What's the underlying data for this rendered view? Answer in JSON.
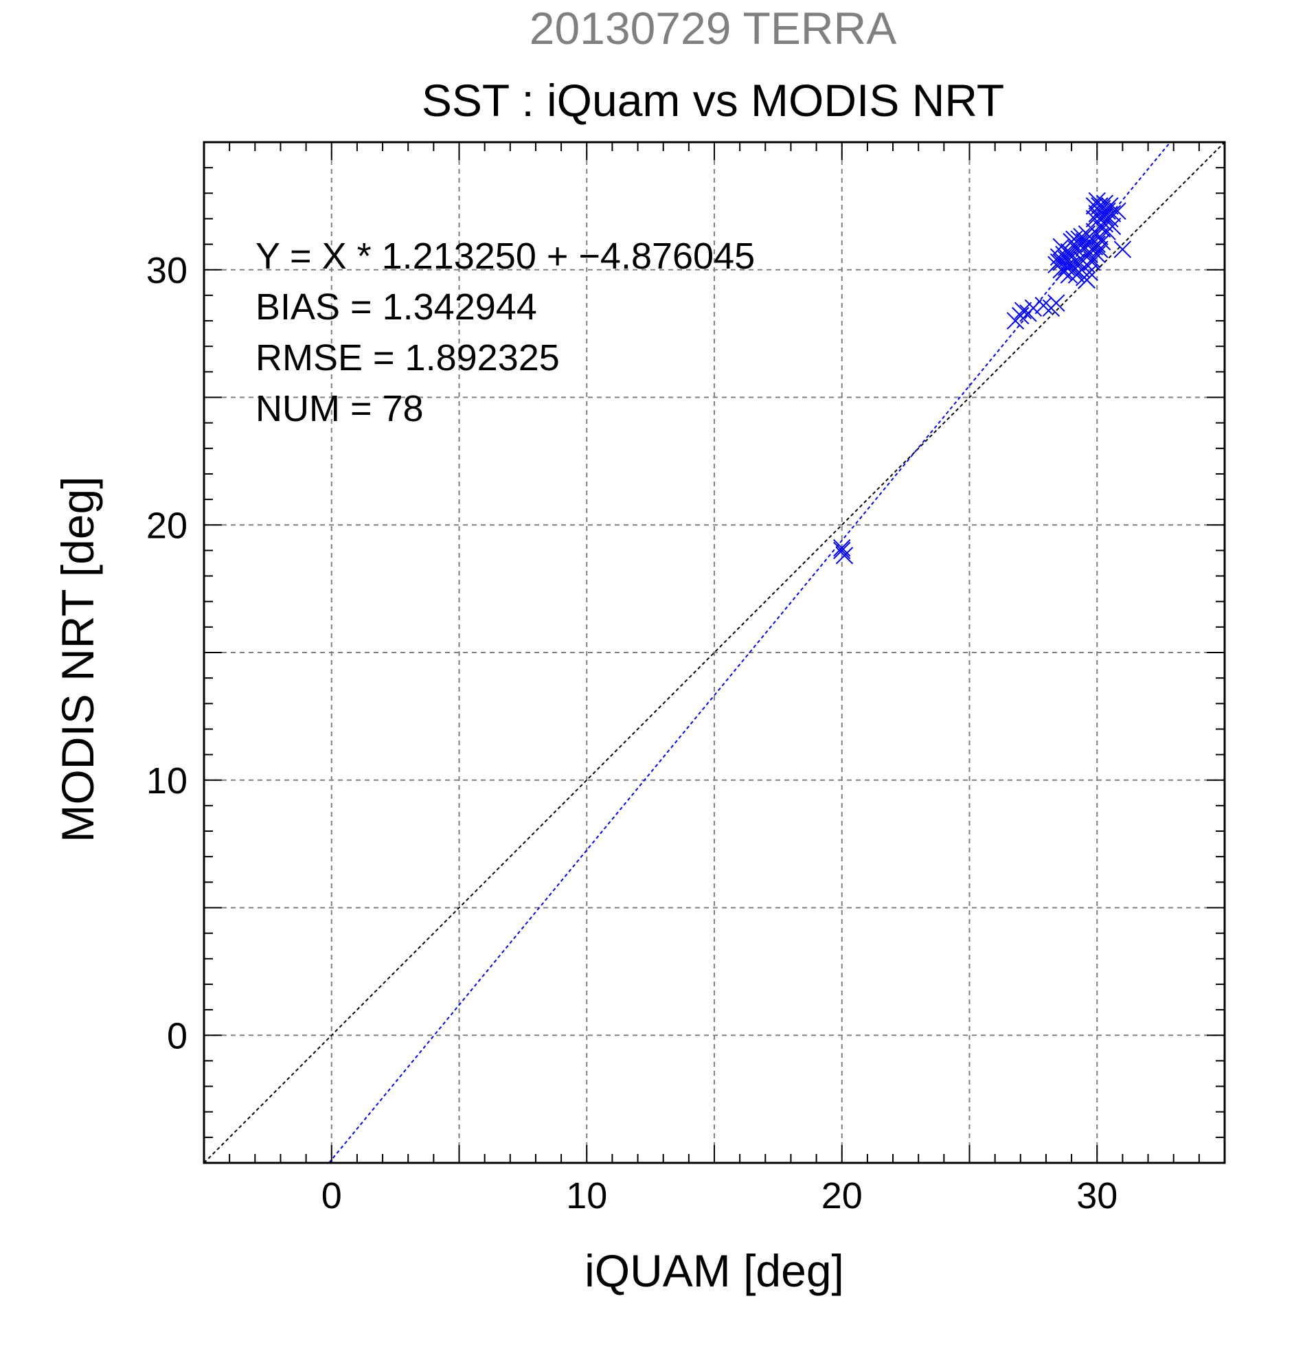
{
  "chart_data": {
    "type": "scatter",
    "supertitle": "20130729 TERRA",
    "title": "SST : iQuam vs MODIS NRT",
    "xlabel": "iQUAM [deg]",
    "ylabel": "MODIS NRT [deg]",
    "xlim": [
      -5,
      35
    ],
    "ylim": [
      -5,
      35
    ],
    "xticks": [
      0,
      10,
      20,
      30
    ],
    "yticks": [
      0,
      10,
      20,
      30
    ],
    "grid_step": 5,
    "minor_tick_step": 1,
    "grid": true,
    "annotations": [
      "Y = X * 1.213250 + −4.876045",
      "BIAS = 1.342944",
      "RMSE = 1.892325",
      "NUM = 78"
    ],
    "identity_line": {
      "slope": 1,
      "intercept": 0,
      "color": "#000000"
    },
    "fit_line": {
      "slope": 1.21325,
      "intercept": -4.876045,
      "color": "#0000ff"
    },
    "series": [
      {
        "marker": "x",
        "color": "#0000ff",
        "points": [
          [
            20.0,
            19.1
          ],
          [
            20.1,
            18.8
          ],
          [
            20.0,
            19.0
          ],
          [
            26.8,
            28.0
          ],
          [
            27.0,
            28.2
          ],
          [
            27.1,
            28.4
          ],
          [
            27.3,
            28.3
          ],
          [
            27.5,
            28.5
          ],
          [
            27.9,
            28.6
          ],
          [
            28.2,
            28.5
          ],
          [
            28.4,
            28.7
          ],
          [
            28.4,
            30.2
          ],
          [
            28.5,
            30.5
          ],
          [
            28.6,
            30.0
          ],
          [
            28.6,
            30.3
          ],
          [
            28.7,
            30.6
          ],
          [
            28.8,
            30.1
          ],
          [
            28.8,
            30.4
          ],
          [
            28.9,
            29.8
          ],
          [
            28.9,
            30.7
          ],
          [
            29.0,
            30.2
          ],
          [
            29.0,
            30.5
          ],
          [
            29.1,
            30.0
          ],
          [
            29.1,
            31.2
          ],
          [
            29.2,
            30.3
          ],
          [
            29.2,
            30.8
          ],
          [
            29.3,
            29.9
          ],
          [
            29.3,
            31.0
          ],
          [
            29.4,
            30.4
          ],
          [
            29.4,
            31.3
          ],
          [
            29.5,
            29.7
          ],
          [
            29.5,
            30.9
          ],
          [
            29.5,
            31.1
          ],
          [
            29.6,
            30.2
          ],
          [
            29.6,
            31.4
          ],
          [
            29.7,
            30.6
          ],
          [
            29.7,
            31.0
          ],
          [
            29.8,
            31.2
          ],
          [
            29.8,
            30.4
          ],
          [
            29.9,
            31.5
          ],
          [
            29.9,
            30.9
          ],
          [
            29.9,
            32.5
          ],
          [
            30.0,
            31.0
          ],
          [
            30.0,
            32.2
          ],
          [
            30.0,
            32.7
          ],
          [
            30.1,
            31.3
          ],
          [
            30.1,
            32.0
          ],
          [
            30.1,
            30.8
          ],
          [
            30.2,
            31.6
          ],
          [
            30.2,
            32.4
          ],
          [
            30.2,
            31.1
          ],
          [
            30.3,
            32.1
          ],
          [
            30.3,
            31.8
          ],
          [
            30.3,
            32.6
          ],
          [
            30.4,
            31.9
          ],
          [
            30.4,
            32.3
          ],
          [
            30.5,
            32.0
          ],
          [
            30.5,
            32.5
          ],
          [
            30.6,
            32.2
          ],
          [
            30.6,
            31.7
          ],
          [
            29.6,
            29.6
          ],
          [
            29.8,
            30.3
          ],
          [
            30.0,
            30.6
          ],
          [
            29.4,
            30.0
          ],
          [
            29.2,
            29.8
          ],
          [
            31.0,
            30.8
          ],
          [
            30.8,
            32.3
          ],
          [
            28.6,
            30.9
          ],
          [
            28.7,
            29.9
          ],
          [
            29.0,
            31.1
          ],
          [
            29.3,
            31.2
          ],
          [
            29.6,
            31.0
          ],
          [
            29.9,
            32.0
          ],
          [
            30.1,
            32.5
          ],
          [
            30.4,
            31.5
          ],
          [
            29.7,
            29.9
          ],
          [
            28.5,
            30.3
          ],
          [
            28.9,
            30.6
          ]
        ]
      }
    ]
  }
}
